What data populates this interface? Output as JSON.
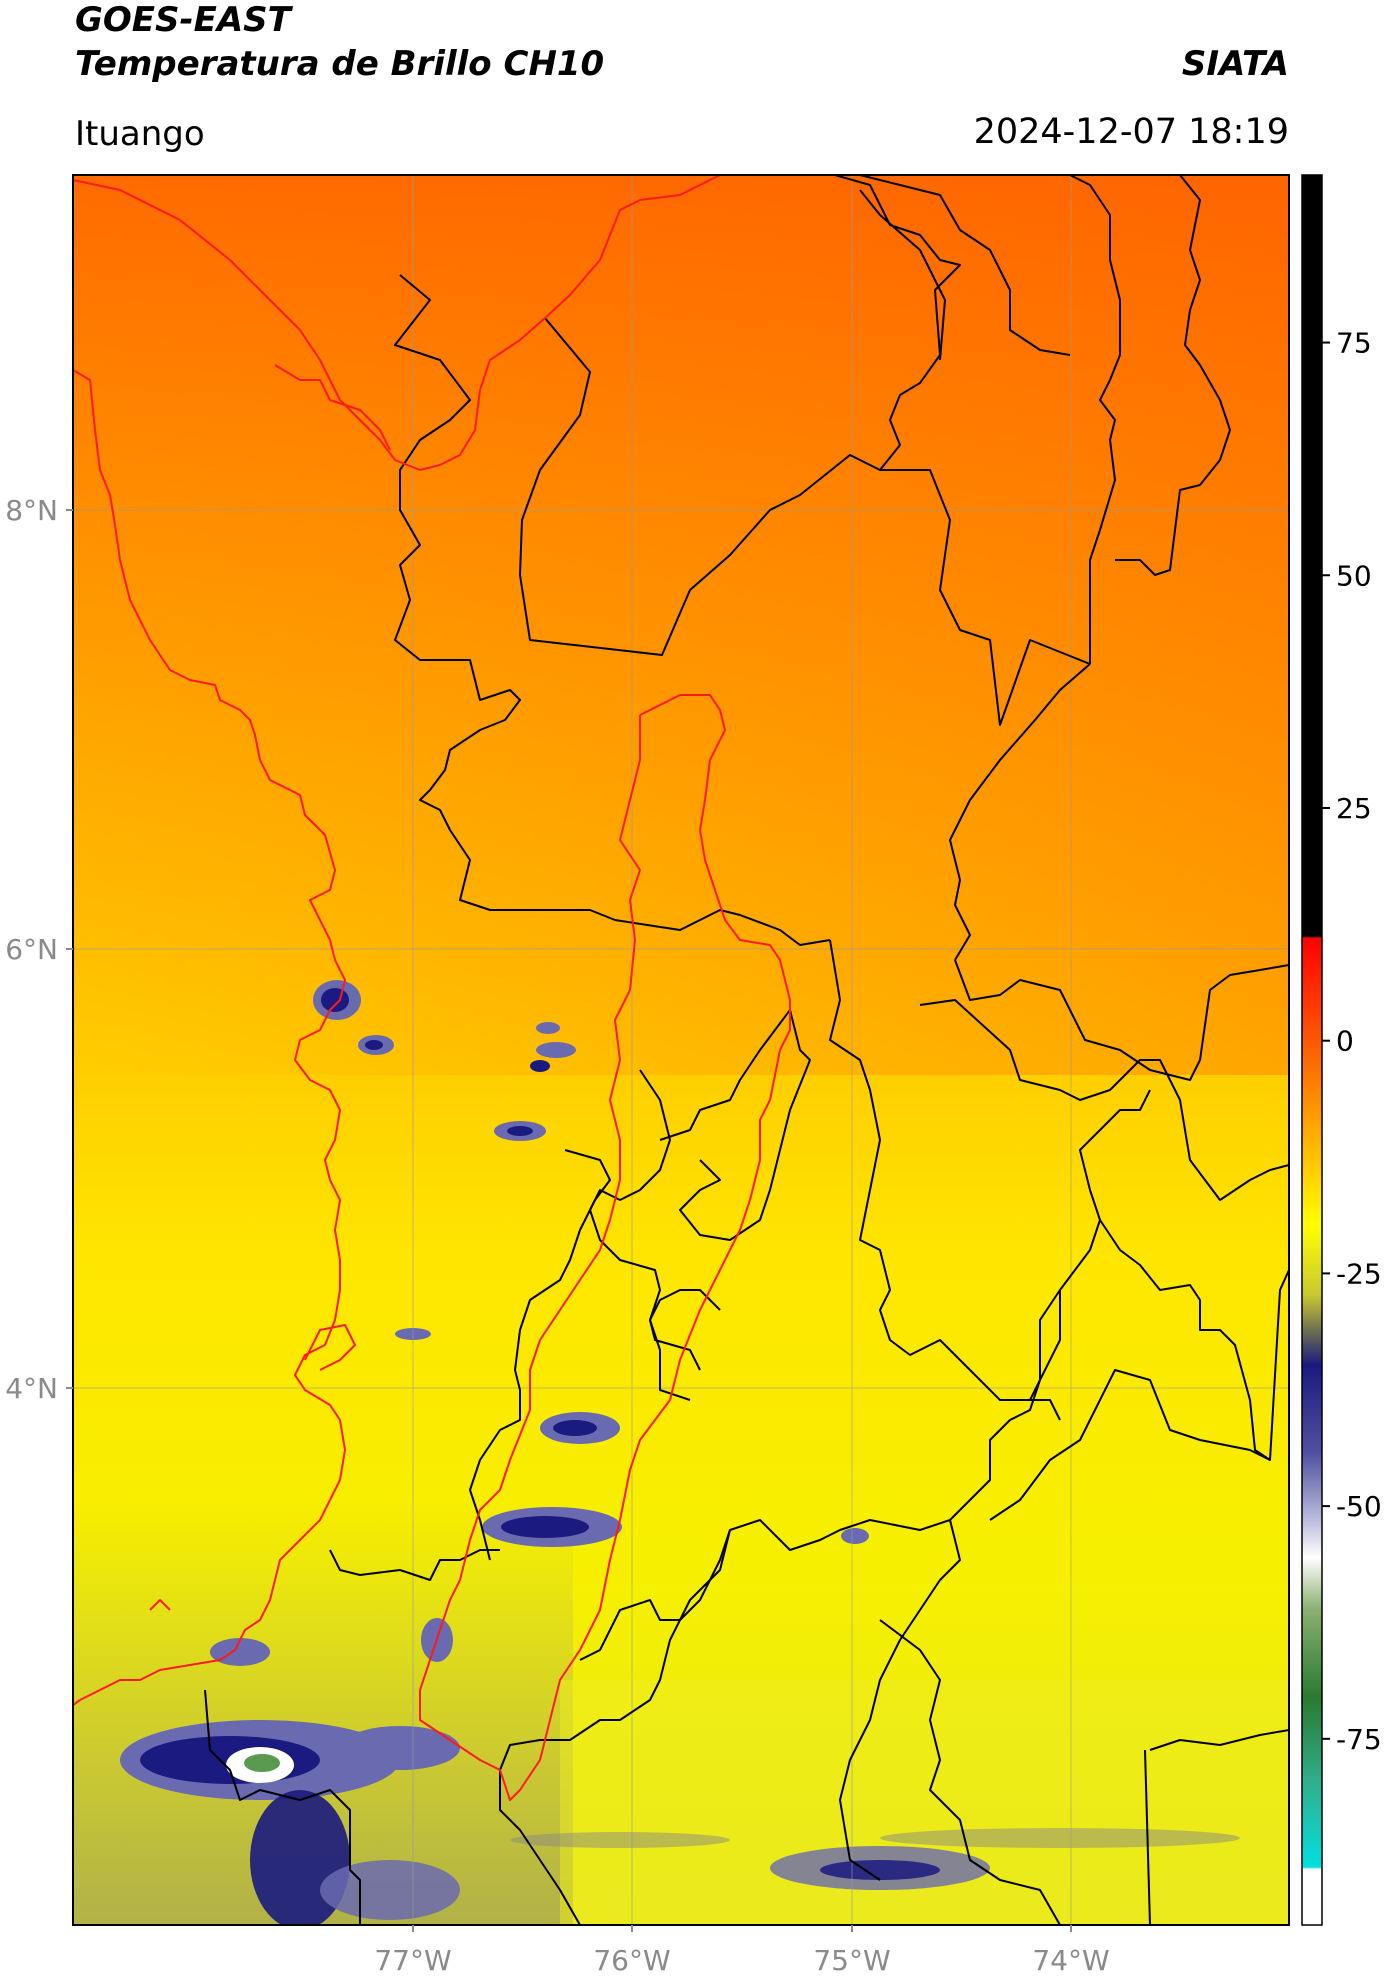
{
  "header": {
    "satellite": "GOES-EAST",
    "product": "Temperatura de Brillo CH10",
    "brand": "SIATA",
    "location": "Ituango",
    "timestamp": "2024-12-07 18:19"
  },
  "map": {
    "lon_range": [
      -78.55,
      -72.95
    ],
    "lat_range": [
      1.95,
      9.95
    ],
    "lat_ticks": [
      {
        "value": 8,
        "label": "8°N"
      },
      {
        "value": 6,
        "label": "6°N"
      },
      {
        "value": 4,
        "label": "4°N"
      }
    ],
    "lon_ticks": [
      {
        "value": -77,
        "label": "77°W"
      },
      {
        "value": -76,
        "label": "76°W"
      },
      {
        "value": -75,
        "label": "75°W"
      },
      {
        "value": -74,
        "label": "74°W"
      }
    ],
    "background_gradient": [
      "#ff6a00",
      "#ff9a00",
      "#ffcc00",
      "#fff000",
      "#f0f000",
      "#c8c83a"
    ],
    "cold_cloud_colors": {
      "outer": "#6a6ab0",
      "core": "#1a1a80",
      "coldest": "#ffffff",
      "green": "#5a9a50"
    },
    "border_colors": {
      "departments": "#000000",
      "coast_and_basin": "#ff1a1a"
    }
  },
  "colorbar": {
    "range": [
      -95,
      93
    ],
    "ticks": [
      {
        "value": 75,
        "label": "75"
      },
      {
        "value": 50,
        "label": "50"
      },
      {
        "value": 25,
        "label": "25"
      },
      {
        "value": 0,
        "label": "0"
      },
      {
        "value": -25,
        "label": "-25"
      },
      {
        "value": -50,
        "label": "-50"
      },
      {
        "value": -75,
        "label": "-75"
      }
    ]
  }
}
